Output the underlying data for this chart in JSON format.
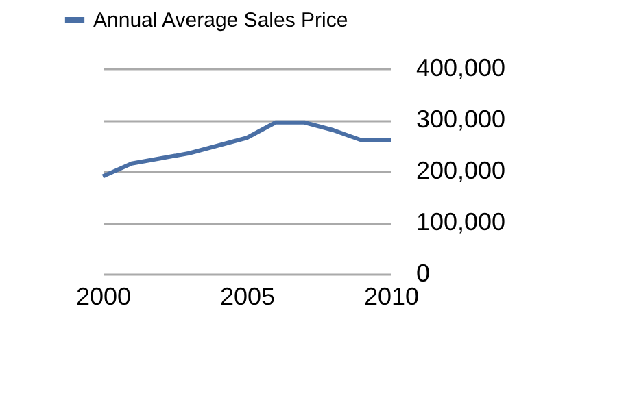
{
  "chart_data": {
    "type": "line",
    "x": [
      2000,
      2001,
      2002,
      2003,
      2004,
      2005,
      2006,
      2007,
      2008,
      2009,
      2010
    ],
    "series": [
      {
        "name": "Annual Average Sales Price",
        "color": "#4a6fa5",
        "values": [
          190000,
          215000,
          225000,
          235000,
          250000,
          265000,
          295000,
          295000,
          280000,
          260000,
          260000
        ]
      }
    ],
    "xlim": [
      2000,
      2010
    ],
    "xticks": [
      2000,
      2005,
      2010
    ],
    "ylim": [
      0,
      400000
    ],
    "yticks": [
      0,
      {
        "value": 100000,
        "label": "100,000"
      },
      {
        "value": 200000,
        "label": "200,000"
      },
      {
        "value": 300000,
        "label": "300,000"
      },
      {
        "value": 400000,
        "label": "400,000"
      }
    ],
    "grid": "y",
    "legend": "top left",
    "marker": "none",
    "line_style": "solid"
  }
}
